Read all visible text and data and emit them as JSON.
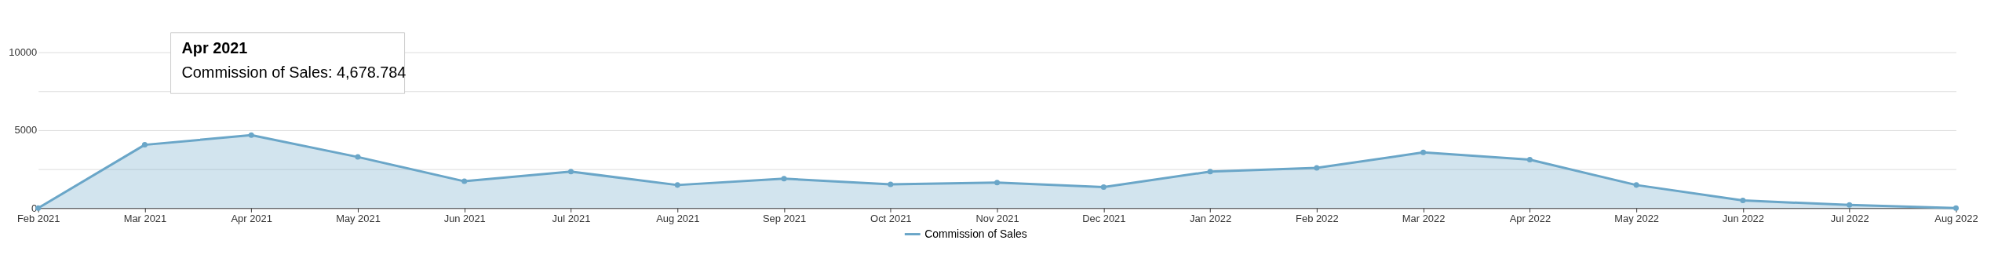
{
  "chart_data": {
    "type": "area",
    "categories": [
      "Feb 2021",
      "Mar 2021",
      "Apr 2021",
      "May 2021",
      "Jun 2021",
      "Jul 2021",
      "Aug 2021",
      "Sep 2021",
      "Oct 2021",
      "Nov 2021",
      "Dec 2021",
      "Jan 2022",
      "Feb 2022",
      "Mar 2022",
      "Apr 2022",
      "May 2022",
      "Jun 2022",
      "Jul 2022",
      "Aug 2022"
    ],
    "series": [
      {
        "name": "Commission of Sales",
        "color": "#6aa6c8",
        "values": [
          0,
          4060,
          4678.784,
          3280,
          1720,
          2340,
          1480,
          1890,
          1520,
          1640,
          1350,
          2340,
          2580,
          3570,
          3110,
          1480,
          490,
          200,
          0
        ]
      }
    ],
    "ylim": [
      0,
      10000
    ],
    "yticks": [
      0,
      {
        "value": 2500,
        "label": null
      },
      5000,
      {
        "value": 7500,
        "label": null
      },
      10000
    ],
    "grid": "y",
    "legend": "bottom",
    "marker": "circle",
    "annotations": [
      "Apr 2021\nCommission of Sales: 4,678.784"
    ]
  }
}
